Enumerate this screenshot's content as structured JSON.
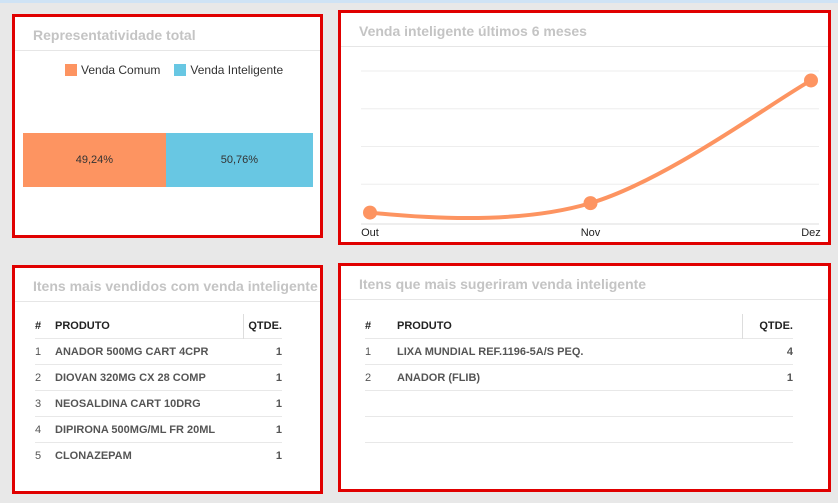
{
  "representatividade": {
    "title": "Representatividade total",
    "legend": [
      {
        "label": "Venda Comum",
        "color": "#fd9461"
      },
      {
        "label": "Venda Inteligente",
        "color": "#68c7e3"
      }
    ],
    "chart_data": {
      "type": "bar",
      "stacked": true,
      "orientation": "horizontal",
      "series": [
        {
          "name": "Venda Comum",
          "values": [
            49.24
          ],
          "label": "49,24%",
          "color": "#fd9461"
        },
        {
          "name": "Venda Inteligente",
          "values": [
            50.76
          ],
          "label": "50,76%",
          "color": "#68c7e3"
        }
      ],
      "legend": "top"
    }
  },
  "venda_inteligente": {
    "title": "Venda inteligente últimos 6 meses",
    "chart_data": {
      "type": "line",
      "categories": [
        "Out",
        "Nov",
        "Dez"
      ],
      "series": [
        {
          "values": [
            1,
            2,
            15
          ],
          "color": "#fd9461"
        }
      ],
      "ylim": [
        0,
        16
      ],
      "grid": true
    }
  },
  "itens_vendidos": {
    "title": "Itens mais vendidos com venda inteligente",
    "headers": {
      "idx": "#",
      "produto": "PRODUTO",
      "qtde": "QTDE."
    },
    "rows": [
      {
        "idx": "1",
        "produto": "ANADOR 500MG CART 4CPR",
        "qtde": "1"
      },
      {
        "idx": "2",
        "produto": "DIOVAN 320MG CX 28 COMP",
        "qtde": "1"
      },
      {
        "idx": "3",
        "produto": "NEOSALDINA  CART 10DRG",
        "qtde": "1"
      },
      {
        "idx": "4",
        "produto": "DIPIRONA 500MG/ML FR 20ML",
        "qtde": "1"
      },
      {
        "idx": "5",
        "produto": "CLONAZEPAM",
        "qtde": "1"
      }
    ]
  },
  "itens_sugeriram": {
    "title": "Itens que mais sugeriram venda inteligente",
    "headers": {
      "idx": "#",
      "produto": "PRODUTO",
      "qtde": "QTDE."
    },
    "rows": [
      {
        "idx": "1",
        "produto": "LIXA  MUNDIAL REF.1196-5A/S PEQ.",
        "qtde": "4"
      },
      {
        "idx": "2",
        "produto": "ANADOR (FLIB)",
        "qtde": "1"
      }
    ]
  }
}
